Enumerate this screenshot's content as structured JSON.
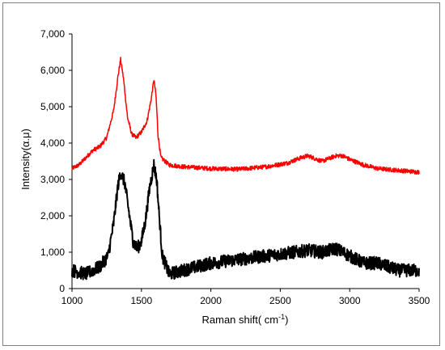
{
  "chart_data": {
    "type": "line",
    "title": "",
    "xlabel": "Raman shift( cm",
    "xlabel_sup": "-1",
    "xlabel_end": ")",
    "ylabel": "Intensity(α.μ)",
    "xlim": [
      1000,
      3500
    ],
    "ylim": [
      0,
      7000
    ],
    "x_ticks": [
      "1000",
      "1500",
      "2000",
      "2500",
      "3000",
      "3500"
    ],
    "y_ticks": [
      "0",
      "1,000",
      "2,000",
      "3,000",
      "4,000",
      "5,000",
      "6,000",
      "7,000"
    ],
    "grid": false,
    "legend": "none",
    "series": [
      {
        "color": "#ff0000",
        "noise": 60,
        "points": [
          [
            1000,
            3300
          ],
          [
            1050,
            3400
          ],
          [
            1100,
            3600
          ],
          [
            1150,
            3800
          ],
          [
            1200,
            3900
          ],
          [
            1250,
            4150
          ],
          [
            1300,
            4900
          ],
          [
            1330,
            5800
          ],
          [
            1350,
            6300
          ],
          [
            1370,
            5800
          ],
          [
            1400,
            4700
          ],
          [
            1430,
            4250
          ],
          [
            1460,
            4150
          ],
          [
            1500,
            4300
          ],
          [
            1540,
            4600
          ],
          [
            1570,
            5200
          ],
          [
            1590,
            5750
          ],
          [
            1605,
            5300
          ],
          [
            1620,
            4200
          ],
          [
            1640,
            3600
          ],
          [
            1700,
            3400
          ],
          [
            1800,
            3350
          ],
          [
            2000,
            3300
          ],
          [
            2200,
            3280
          ],
          [
            2400,
            3350
          ],
          [
            2550,
            3450
          ],
          [
            2650,
            3600
          ],
          [
            2700,
            3650
          ],
          [
            2800,
            3500
          ],
          [
            2900,
            3650
          ],
          [
            2950,
            3650
          ],
          [
            3000,
            3550
          ],
          [
            3100,
            3400
          ],
          [
            3200,
            3300
          ],
          [
            3350,
            3250
          ],
          [
            3500,
            3200
          ]
        ]
      },
      {
        "color": "#000000",
        "noise": 180,
        "points": [
          [
            1000,
            500
          ],
          [
            1100,
            400
          ],
          [
            1200,
            600
          ],
          [
            1260,
            900
          ],
          [
            1300,
            1800
          ],
          [
            1330,
            2800
          ],
          [
            1350,
            3200
          ],
          [
            1380,
            2900
          ],
          [
            1410,
            2100
          ],
          [
            1440,
            1300
          ],
          [
            1470,
            1100
          ],
          [
            1500,
            1300
          ],
          [
            1530,
            1900
          ],
          [
            1560,
            2800
          ],
          [
            1590,
            3400
          ],
          [
            1610,
            3000
          ],
          [
            1630,
            1900
          ],
          [
            1650,
            900
          ],
          [
            1700,
            400
          ],
          [
            1800,
            500
          ],
          [
            1900,
            600
          ],
          [
            2000,
            700
          ],
          [
            2200,
            800
          ],
          [
            2400,
            900
          ],
          [
            2600,
            1000
          ],
          [
            2700,
            1050
          ],
          [
            2800,
            1000
          ],
          [
            2900,
            1100
          ],
          [
            3000,
            900
          ],
          [
            3100,
            700
          ],
          [
            3200,
            700
          ],
          [
            3350,
            500
          ],
          [
            3500,
            500
          ]
        ]
      }
    ]
  }
}
